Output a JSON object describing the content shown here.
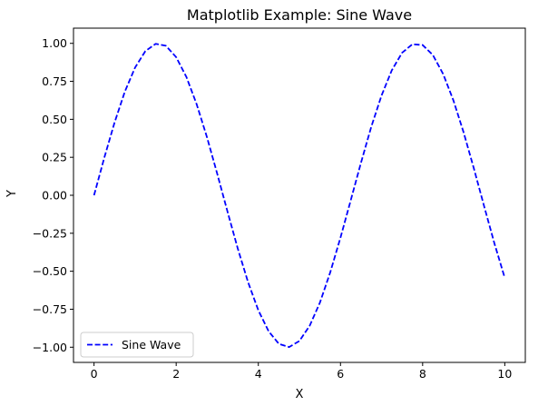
{
  "chart_data": {
    "type": "line",
    "title": "Matplotlib Example: Sine Wave",
    "xlabel": "X",
    "ylabel": "Y",
    "xlim": [
      -0.5,
      10.5
    ],
    "ylim": [
      -1.1,
      1.1
    ],
    "xticks": [
      0,
      2,
      4,
      6,
      8,
      10
    ],
    "xtick_labels": [
      "0",
      "2",
      "4",
      "6",
      "8",
      "10"
    ],
    "yticks": [
      -1.0,
      -0.75,
      -0.5,
      -0.25,
      0.0,
      0.25,
      0.5,
      0.75,
      1.0
    ],
    "ytick_labels": [
      "−1.00",
      "−0.75",
      "−0.50",
      "−0.25",
      "0.00",
      "0.25",
      "0.50",
      "0.75",
      "1.00"
    ],
    "grid": false,
    "legend_position": "lower-left",
    "series": [
      {
        "name": "Sine Wave",
        "color": "#0000ff",
        "linestyle": "dashed",
        "x": [
          0.0,
          0.25,
          0.5,
          0.75,
          1.0,
          1.25,
          1.5,
          1.75,
          2.0,
          2.25,
          2.5,
          2.75,
          3.0,
          3.25,
          3.5,
          3.75,
          4.0,
          4.25,
          4.5,
          4.75,
          5.0,
          5.25,
          5.5,
          5.75,
          6.0,
          6.25,
          6.5,
          6.75,
          7.0,
          7.25,
          7.5,
          7.75,
          8.0,
          8.25,
          8.5,
          8.75,
          9.0,
          9.25,
          9.5,
          9.75,
          10.0
        ],
        "y": [
          0.0,
          0.247,
          0.479,
          0.682,
          0.841,
          0.949,
          0.997,
          0.984,
          0.909,
          0.778,
          0.598,
          0.382,
          0.141,
          -0.108,
          -0.351,
          -0.572,
          -0.757,
          -0.895,
          -0.978,
          -0.999,
          -0.959,
          -0.859,
          -0.706,
          -0.508,
          -0.279,
          -0.033,
          0.215,
          0.451,
          0.657,
          0.823,
          0.938,
          0.994,
          0.989,
          0.923,
          0.798,
          0.624,
          0.412,
          0.174,
          -0.075,
          -0.319,
          -0.544
        ]
      }
    ]
  }
}
